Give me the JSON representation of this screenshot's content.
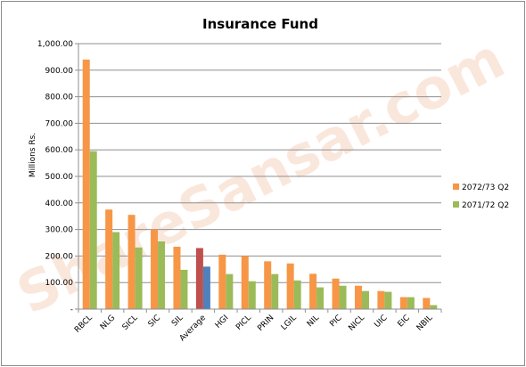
{
  "chart_data": {
    "type": "bar",
    "title": "Insurance Fund",
    "xlabel": "",
    "ylabel": "Millions Rs.",
    "ylim": [
      0,
      1000
    ],
    "ytick_labels": [
      "-",
      "100.00",
      "200.00",
      "300.00",
      "400.00",
      "500.00",
      "600.00",
      "700.00",
      "800.00",
      "900.00",
      "1,000.00"
    ],
    "categories": [
      "RBCL",
      "NLG",
      "SICL",
      "SIC",
      "SIL",
      "Average",
      "HGI",
      "PICL",
      "PRIN",
      "LGIL",
      "NIL",
      "PIC",
      "NICL",
      "UIC",
      "EIC",
      "NBIL"
    ],
    "series": [
      {
        "name": "2072/73 Q2",
        "color": "#f79646",
        "values": [
          940,
          375,
          355,
          300,
          235,
          230,
          205,
          200,
          180,
          172,
          133,
          115,
          88,
          68,
          45,
          42
        ]
      },
      {
        "name": "2071/72 Q2",
        "color": "#9bbb59",
        "values": [
          595,
          290,
          232,
          255,
          148,
          160,
          132,
          105,
          132,
          108,
          82,
          88,
          68,
          65,
          45,
          15
        ]
      }
    ],
    "average_colors": {
      "2072/73 Q2": "#c0504d",
      "2071/72 Q2": "#4f81bd"
    },
    "grid": true,
    "legend_position": "right",
    "watermark": "ShareSansar.com"
  }
}
